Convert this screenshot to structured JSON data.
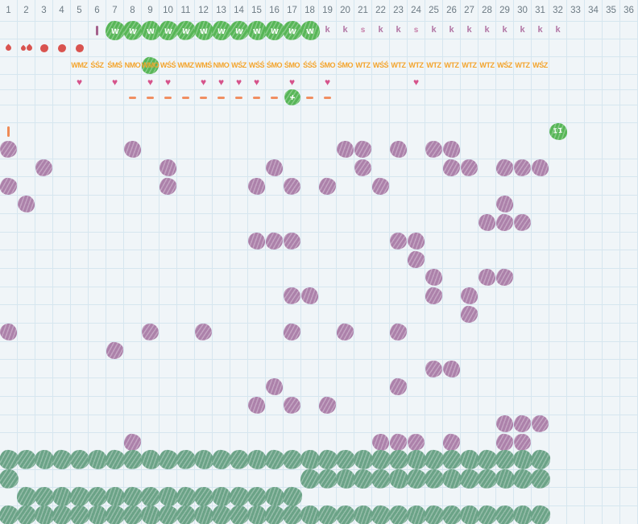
{
  "grid": {
    "columns": 36,
    "day_numbers": [
      "1",
      "2",
      "3",
      "4",
      "5",
      "6",
      "7",
      "8",
      "9",
      "10",
      "11",
      "12",
      "13",
      "14",
      "15",
      "16",
      "17",
      "18",
      "19",
      "20",
      "21",
      "22",
      "23",
      "24",
      "25",
      "26",
      "27",
      "28",
      "29",
      "30",
      "31",
      "32",
      "33",
      "34",
      "35",
      "36"
    ]
  },
  "colors": {
    "background": "#f0f5f8",
    "grid_line": "#d6e6ef",
    "header_text": "#6d7b84",
    "bright_green": "#57b657",
    "sage_green": "#6ba387",
    "purple": "#ac81aa",
    "letter_mauve": "#b277a5",
    "letter_pink": "#c77fa9",
    "orange": "#f3a42c",
    "red": "#d9534f",
    "heart_pink": "#d6538b",
    "dash_salmon": "#f08e61",
    "tick_maroon": "#a4618c",
    "tick_orange": "#ef8a55"
  },
  "icons": {
    "heart": "♥"
  },
  "fertile_row": {
    "tick_col": 6,
    "blob_letter": "w",
    "blob_cols": [
      7,
      8,
      9,
      10,
      11,
      12,
      13,
      14,
      15,
      16,
      17,
      18
    ],
    "letters": [
      {
        "col": 19,
        "ch": "k"
      },
      {
        "col": 20,
        "ch": "k"
      },
      {
        "col": 21,
        "ch": "s"
      },
      {
        "col": 22,
        "ch": "k"
      },
      {
        "col": 23,
        "ch": "k"
      },
      {
        "col": 24,
        "ch": "s"
      },
      {
        "col": 25,
        "ch": "k"
      },
      {
        "col": 26,
        "ch": "k"
      },
      {
        "col": 27,
        "ch": "k"
      },
      {
        "col": 28,
        "ch": "k"
      },
      {
        "col": 29,
        "ch": "k"
      },
      {
        "col": 30,
        "ch": "k"
      },
      {
        "col": 31,
        "ch": "k"
      },
      {
        "col": 32,
        "ch": "k"
      }
    ]
  },
  "bleeding_row": {
    "light_drop_cols": [
      1
    ],
    "double_drop_cols": [
      2
    ],
    "dot_cols": [
      3,
      4,
      5
    ]
  },
  "mucus_row": {
    "highlight_col": 9,
    "codes": [
      {
        "col": 5,
        "text": "WMZ"
      },
      {
        "col": 6,
        "text": "ŚŚZ"
      },
      {
        "col": 7,
        "text": "ŚMŚ"
      },
      {
        "col": 8,
        "text": "NMO"
      },
      {
        "col": 9,
        "text": "WMO"
      },
      {
        "col": 10,
        "text": "WŚŚ"
      },
      {
        "col": 11,
        "text": "WMZ"
      },
      {
        "col": 12,
        "text": "WMŚ"
      },
      {
        "col": 13,
        "text": "NMO"
      },
      {
        "col": 14,
        "text": "WŚZ"
      },
      {
        "col": 15,
        "text": "WŚŚ"
      },
      {
        "col": 16,
        "text": "ŚMO"
      },
      {
        "col": 17,
        "text": "ŚMO"
      },
      {
        "col": 18,
        "text": "ŚŚŚ"
      },
      {
        "col": 19,
        "text": "ŚMO"
      },
      {
        "col": 20,
        "text": "ŚMO"
      },
      {
        "col": 21,
        "text": "WTZ"
      },
      {
        "col": 22,
        "text": "WŚŚ"
      },
      {
        "col": 23,
        "text": "WTZ"
      },
      {
        "col": 24,
        "text": "WTZ"
      },
      {
        "col": 25,
        "text": "WTZ"
      },
      {
        "col": 26,
        "text": "WTZ"
      },
      {
        "col": 27,
        "text": "WTZ"
      },
      {
        "col": 28,
        "text": "WTZ"
      },
      {
        "col": 29,
        "text": "WŚZ"
      },
      {
        "col": 30,
        "text": "WTZ"
      },
      {
        "col": 31,
        "text": "WŚZ"
      }
    ]
  },
  "hearts_row": {
    "heart_cols": [
      5,
      7,
      9,
      10,
      12,
      13,
      14,
      15,
      17,
      19,
      24
    ]
  },
  "dash_row": {
    "dash_cols": [
      8,
      9,
      10,
      11,
      12,
      13,
      14,
      15,
      16,
      18,
      19
    ],
    "plus_col": 17,
    "plus_label": "+"
  },
  "marker_row": {
    "tick_col": 1,
    "pause_col": 32,
    "pause_label": "II"
  },
  "temperature_grid": {
    "rows": 17,
    "marks": [
      {
        "row": 1,
        "cols": [
          1,
          8,
          20,
          21,
          23,
          25,
          26
        ]
      },
      {
        "row": 2,
        "cols": [
          3,
          10,
          16,
          21,
          26,
          27,
          29,
          30,
          31
        ]
      },
      {
        "row": 3,
        "cols": [
          1,
          10,
          15,
          17,
          19,
          22
        ]
      },
      {
        "row": 4,
        "cols": [
          2,
          29
        ]
      },
      {
        "row": 5,
        "cols": [
          28,
          29,
          30
        ]
      },
      {
        "row": 6,
        "cols": [
          15,
          16,
          17,
          23,
          24
        ]
      },
      {
        "row": 7,
        "cols": [
          24
        ]
      },
      {
        "row": 8,
        "cols": [
          25,
          28,
          29
        ]
      },
      {
        "row": 9,
        "cols": [
          17,
          18,
          25,
          27
        ]
      },
      {
        "row": 10,
        "cols": [
          27
        ]
      },
      {
        "row": 11,
        "cols": [
          1,
          9,
          12,
          17,
          20,
          23
        ]
      },
      {
        "row": 12,
        "cols": [
          7
        ]
      },
      {
        "row": 13,
        "cols": [
          25,
          26
        ]
      },
      {
        "row": 14,
        "cols": [
          16,
          23
        ]
      },
      {
        "row": 15,
        "cols": [
          15,
          17,
          19
        ]
      },
      {
        "row": 16,
        "cols": [
          29,
          30,
          31
        ]
      },
      {
        "row": 17,
        "cols": [
          8,
          22,
          23,
          24,
          26,
          29,
          30
        ]
      }
    ]
  },
  "bottom_grid": {
    "rows": [
      {
        "cols": [
          1,
          2,
          3,
          4,
          5,
          6,
          7,
          8,
          9,
          10,
          11,
          12,
          13,
          14,
          15,
          16,
          17,
          18,
          19,
          20,
          21,
          22,
          23,
          24,
          25,
          26,
          27,
          28,
          29,
          30,
          31
        ]
      },
      {
        "cols": [
          1,
          18,
          19,
          20,
          21,
          22,
          23,
          24,
          25,
          26,
          27,
          28,
          29,
          30,
          31
        ]
      },
      {
        "cols": [
          2,
          3,
          4,
          5,
          6,
          7,
          8,
          9,
          10,
          11,
          12,
          13,
          14,
          15,
          16,
          17
        ]
      },
      {
        "cols": [
          1,
          2,
          3,
          4,
          5,
          6,
          7,
          8,
          9,
          10,
          11,
          12,
          13,
          14,
          15,
          16,
          17,
          18,
          19,
          20,
          21,
          22,
          23,
          24,
          25,
          26,
          27,
          28,
          29,
          30,
          31
        ]
      }
    ]
  }
}
